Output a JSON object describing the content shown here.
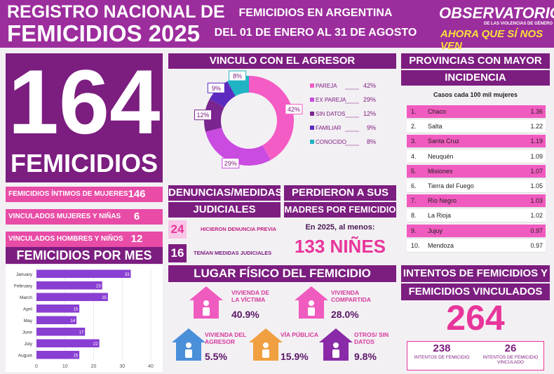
{
  "header": {
    "title_line1": "REGISTRO NACIONAL DE",
    "title_line2": "FEMICIDIOS 2025",
    "subtitle_line1": "FEMICIDIOS EN ARGENTINA",
    "subtitle_line2": "DEL 01 DE ENERO AL 31 DE AGOSTO",
    "logo_name": "OBSERVATORIO",
    "logo_tagline": "DE LAS VIOLENCIAS DE GÉNERO",
    "logo_slogan": "AHORA QUE SÍ NOS VEN"
  },
  "total": {
    "number": "164",
    "label": "FEMICIDIOS"
  },
  "breakdown": [
    {
      "label": "FEMICIDIOS ÍNTIMOS DE MUJERES",
      "value": "146"
    },
    {
      "label": "VINCULADOS MUJERES Y NIÑAS",
      "value": "6"
    },
    {
      "label": "VINCULADOS HOMBRES Y NIÑOS",
      "value": "12"
    }
  ],
  "chart_data": [
    {
      "type": "donut",
      "title": "VINCULO CON EL AGRESOR",
      "categories": [
        "PAREJA",
        "EX PAREJA",
        "SIN DATOS",
        "FAMILIAR",
        "CONOCIDO"
      ],
      "values": [
        42,
        29,
        12,
        9,
        8
      ],
      "value_labels": [
        "42%",
        "29%",
        "12%",
        "9%",
        "8%"
      ],
      "colors": [
        "#f45bc4",
        "#c94be0",
        "#7a2590",
        "#5b2bc0",
        "#1fb3c4"
      ]
    },
    {
      "type": "hbar",
      "title": "FEMICIDIOS POR MES",
      "categories": [
        "January",
        "February",
        "March",
        "April",
        "May",
        "June",
        "July",
        "August"
      ],
      "values": [
        33,
        23,
        25,
        15,
        14,
        17,
        22,
        15
      ],
      "color": "#8a3fd3",
      "xlim": [
        0,
        40
      ],
      "xticks": [
        0,
        10,
        20,
        30,
        40
      ],
      "grid": true
    }
  ],
  "denuncias": {
    "title_line1": "DENUNCIAS/MEDIDAS",
    "title_line2": "JUDICIALES",
    "items": [
      {
        "value": "24",
        "label": "HICIERON DENUNCIA PREVIA"
      },
      {
        "value": "16",
        "label": "TENÍAN MEDIDAS JUDICIALES"
      }
    ]
  },
  "orphans": {
    "title_line1": "PERDIERON A SUS",
    "title_line2": "MADRES POR FEMICIDIO",
    "text": "En 2025, al menos:",
    "highlight": "133 NIÑES"
  },
  "location": {
    "title": "LUGAR FÍSICO DEL FEMICIDIO",
    "items": [
      {
        "label": "VIVIENDA DE LA VÍCTIMA",
        "value": "40.9%"
      },
      {
        "label": "VIVIENDA COMPARTIDA",
        "value": "28.0%"
      },
      {
        "label": "VIVIENDA DEL AGRESOR",
        "value": "5.5%"
      },
      {
        "label": "VÍA PÚBLICA",
        "value": "15.9%"
      },
      {
        "label": "OTROS/ SIN DATOS",
        "value": "9.8%"
      }
    ]
  },
  "provinces": {
    "title_line1": "PROVINCIAS CON MAYOR",
    "title_line2": "INCIDENCIA",
    "subtitle": "Casos cada 100 mil mujeres",
    "rows": [
      [
        "1.",
        "Chaco",
        "1.36"
      ],
      [
        "2.",
        "Salta",
        "1.22"
      ],
      [
        "3.",
        "Santa Cruz",
        "1.19"
      ],
      [
        "4.",
        "Neuquén",
        "1.09"
      ],
      [
        "5.",
        "Misiones",
        "1.07"
      ],
      [
        "6.",
        "Tierra del Fuego",
        "1.05"
      ],
      [
        "7.",
        "Río Negro",
        "1.03"
      ],
      [
        "8.",
        "La Rioja",
        "1.02"
      ],
      [
        "9.",
        "Jujuy",
        "0.97"
      ],
      [
        "10.",
        "Mendoza",
        "0.97"
      ]
    ]
  },
  "attempts": {
    "title_line1": "INTENTOS DE FEMICIDIOS Y",
    "title_line2": "FEMICIDIOS VINCULADOS",
    "total": "264",
    "items": [
      {
        "value": "238",
        "label": "INTENTOS DE FEMICIDIO"
      },
      {
        "value": "26",
        "label": "INTENTOS DE FEMICIDIO VINCULADO"
      }
    ]
  }
}
